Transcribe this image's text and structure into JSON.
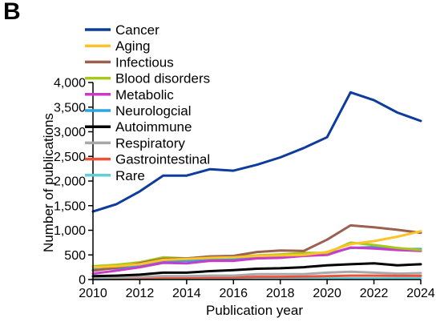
{
  "panel_label": "B",
  "chart_data": {
    "type": "line",
    "title": "",
    "xlabel": "Publication year",
    "ylabel": "Number of publications",
    "xlim": [
      2010,
      2024
    ],
    "ylim": [
      0,
      4000
    ],
    "x_ticks": [
      2010,
      2012,
      2014,
      2016,
      2018,
      2020,
      2022,
      2024
    ],
    "y_ticks": [
      0,
      500,
      1000,
      1500,
      2000,
      2500,
      3000,
      3500,
      4000
    ],
    "y_tick_labels": [
      "0",
      "500",
      "1,000",
      "1,500",
      "2,000",
      "2,500",
      "3,000",
      "3,500",
      "4,000"
    ],
    "grid": false,
    "legend_position": "top-left",
    "x": [
      2010,
      2011,
      2012,
      2013,
      2014,
      2015,
      2016,
      2017,
      2018,
      2019,
      2020,
      2021,
      2022,
      2023,
      2024
    ],
    "series": [
      {
        "name": "Cancer",
        "color": "#0d3b9e",
        "values": [
          1380,
          1530,
          1790,
          2110,
          2110,
          2240,
          2210,
          2330,
          2480,
          2670,
          2890,
          3800,
          3640,
          3390,
          3220
        ]
      },
      {
        "name": "Aging",
        "color": "#ffc32a",
        "values": [
          250,
          270,
          310,
          400,
          420,
          440,
          450,
          480,
          490,
          500,
          560,
          720,
          780,
          870,
          980
        ]
      },
      {
        "name": "Infectious",
        "color": "#9c6050",
        "values": [
          180,
          240,
          330,
          420,
          430,
          470,
          480,
          560,
          590,
          580,
          810,
          1100,
          1060,
          1010,
          950
        ]
      },
      {
        "name": "Blood disorders",
        "color": "#a5c81a",
        "values": [
          270,
          300,
          350,
          450,
          430,
          460,
          460,
          490,
          510,
          540,
          540,
          750,
          700,
          640,
          600
        ]
      },
      {
        "name": "Metabolic",
        "color": "#c83cc8",
        "values": [
          120,
          180,
          250,
          340,
          330,
          380,
          380,
          430,
          440,
          480,
          500,
          650,
          630,
          600,
          580
        ]
      },
      {
        "name": "Neurologcial",
        "color": "#2ea4e0",
        "values": [
          200,
          230,
          280,
          380,
          380,
          400,
          420,
          460,
          470,
          480,
          520,
          640,
          660,
          620,
          620
        ]
      },
      {
        "name": "Autoimmune",
        "color": "#000000",
        "values": [
          70,
          80,
          100,
          140,
          140,
          170,
          190,
          220,
          230,
          250,
          290,
          310,
          330,
          290,
          310
        ]
      },
      {
        "name": "Respiratory",
        "color": "#a8a8a8",
        "values": [
          30,
          40,
          50,
          70,
          70,
          80,
          80,
          110,
          110,
          110,
          140,
          160,
          140,
          120,
          130
        ]
      },
      {
        "name": "Gastrointestinal",
        "color": "#f0503a",
        "values": [
          20,
          25,
          30,
          40,
          40,
          45,
          45,
          55,
          55,
          60,
          70,
          80,
          80,
          75,
          75
        ]
      },
      {
        "name": "Rare",
        "color": "#5ed0dc",
        "values": [
          5,
          8,
          10,
          12,
          12,
          14,
          15,
          18,
          18,
          20,
          22,
          25,
          25,
          24,
          24
        ]
      }
    ]
  }
}
